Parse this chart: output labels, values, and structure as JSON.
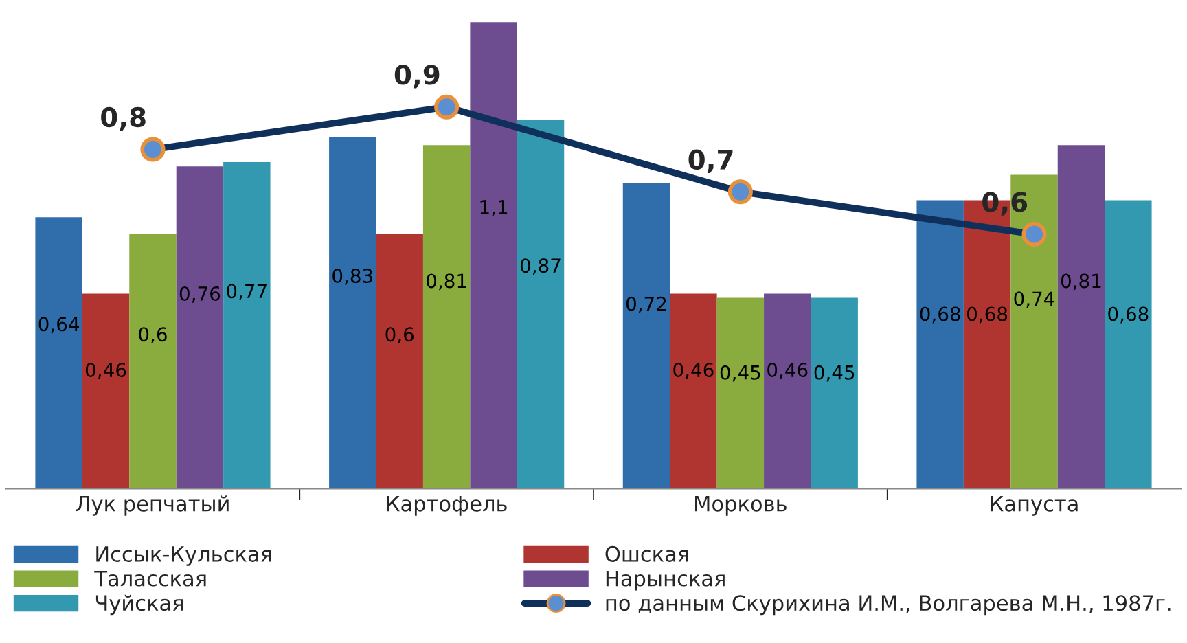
{
  "chart_data": {
    "type": "bar",
    "categories": [
      "Лук репчатый",
      "Картофель",
      "Морковь",
      "Капуста"
    ],
    "series": [
      {
        "name": "Иссык-Кульская",
        "color": "#2f6dab",
        "values": [
          0.64,
          0.83,
          0.72,
          0.68
        ],
        "value_labels": [
          "0,64",
          "0,83",
          "0,72",
          "0,68"
        ]
      },
      {
        "name": "Ошская",
        "color": "#b0342f",
        "values": [
          0.46,
          0.6,
          0.46,
          0.68
        ],
        "value_labels": [
          "0,46",
          "0,6",
          "0,46",
          "0,68"
        ]
      },
      {
        "name": "Таласская",
        "color": "#8aab3e",
        "values": [
          0.6,
          0.81,
          0.45,
          0.74
        ],
        "value_labels": [
          "0,6",
          "0,81",
          "0,45",
          "0,74"
        ]
      },
      {
        "name": "Нарынская",
        "color": "#6d4c8f",
        "values": [
          0.76,
          1.1,
          0.46,
          0.81
        ],
        "value_labels": [
          "0,76",
          "1,1",
          "0,46",
          "0,81"
        ]
      },
      {
        "name": "Чуйская",
        "color": "#3399b0",
        "values": [
          0.77,
          0.87,
          0.45,
          0.68
        ],
        "value_labels": [
          "0,77",
          "0,87",
          "0,45",
          "0,68"
        ]
      },
      {
        "name": "по данным Скурихина И.М., Волгарева М.Н., 1987г.",
        "color": "#10305c",
        "type": "line",
        "marker": "circle",
        "values": [
          0.8,
          0.9,
          0.7,
          0.6
        ],
        "value_labels": [
          "0,8",
          "0,9",
          "0,7",
          "0,6"
        ]
      }
    ],
    "legend": "bottom",
    "grid": false
  }
}
